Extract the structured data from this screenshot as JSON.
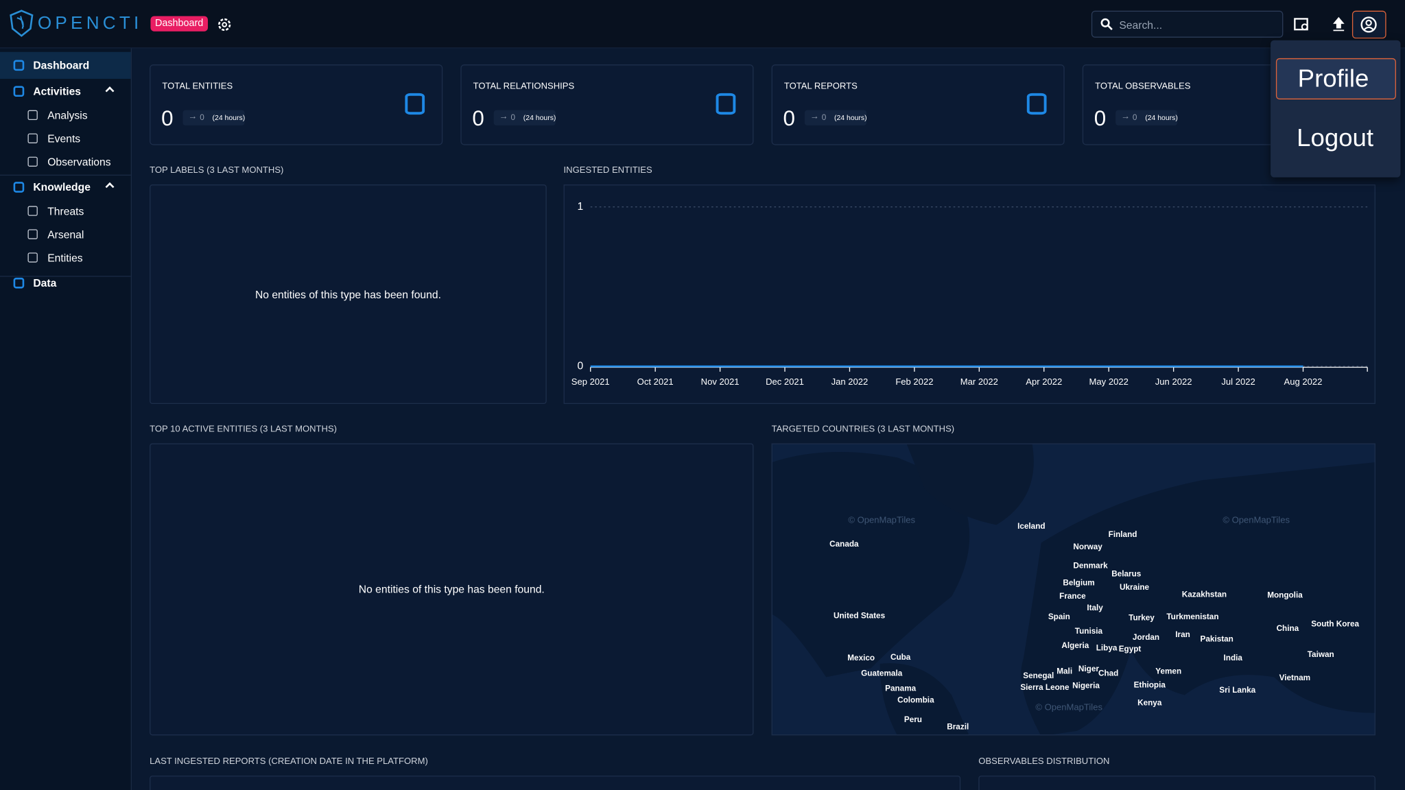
{
  "header": {
    "logo": "OPENCTI",
    "badge": "Dashboard",
    "search_placeholder": "Search..."
  },
  "user_menu": {
    "items": [
      "Profile",
      "Logout"
    ]
  },
  "sidebar": {
    "items": [
      {
        "label": "Dashboard"
      },
      {
        "label": "Activities",
        "children": [
          "Analysis",
          "Events",
          "Observations"
        ]
      },
      {
        "label": "Knowledge",
        "children": [
          "Threats",
          "Arsenal",
          "Entities"
        ]
      },
      {
        "label": "Data"
      }
    ]
  },
  "cards": [
    {
      "title": "TOTAL ENTITIES",
      "value": 0,
      "delta": 0,
      "period": "(24 hours)"
    },
    {
      "title": "TOTAL RELATIONSHIPS",
      "value": 0,
      "delta": 0,
      "period": "(24 hours)"
    },
    {
      "title": "TOTAL REPORTS",
      "value": 0,
      "delta": 0,
      "period": "(24 hours)"
    },
    {
      "title": "TOTAL OBSERVABLES",
      "value": 0,
      "delta": 0,
      "period": "(24 hours)"
    }
  ],
  "panels": {
    "top_labels": {
      "title": "TOP LABELS (3 LAST MONTHS)",
      "empty": "No entities of this type has been found."
    },
    "ingested": {
      "title": "INGESTED ENTITIES"
    },
    "top_active": {
      "title": "TOP 10 ACTIVE ENTITIES (3 LAST MONTHS)",
      "empty": "No entities of this type has been found."
    },
    "countries": {
      "title": "TARGETED COUNTRIES (3 LAST MONTHS)"
    },
    "reports": {
      "title": "LAST INGESTED REPORTS (CREATION DATE IN THE PLATFORM)"
    },
    "observables": {
      "title": "OBSERVABLES DISTRIBUTION"
    }
  },
  "chart_data": {
    "type": "line",
    "categories": [
      "Sep 2021",
      "Oct 2021",
      "Nov 2021",
      "Dec 2021",
      "Jan 2022",
      "Feb 2022",
      "Mar 2022",
      "Apr 2022",
      "May 2022",
      "Jun 2022",
      "Jul 2022",
      "Aug 2022"
    ],
    "values": [
      0,
      0,
      0,
      0,
      0,
      0,
      0,
      0,
      0,
      0,
      0,
      0
    ],
    "color": "#1e88e5",
    "ylim": [
      0,
      1
    ],
    "yticks": [
      0,
      1
    ],
    "grid": true
  },
  "map": {
    "attribution": [
      "© OpenMapTiles",
      "© OpenMapTiles",
      "© OpenMapTiles"
    ],
    "countries": [
      "Iceland",
      "Finland",
      "Canada",
      "Norway",
      "Denmark",
      "Belarus",
      "Belgium",
      "Ukraine",
      "France",
      "Kazakhstan",
      "Mongolia",
      "Italy",
      "United States",
      "Spain",
      "Turkey",
      "Turkmenistan",
      "South Korea",
      "China",
      "Tunisia",
      "Iran",
      "Jordan",
      "Pakistan",
      "Algeria",
      "Libya",
      "Egypt",
      "Taiwan",
      "Mexico",
      "Cuba",
      "India",
      "Niger",
      "Chad",
      "Mali",
      "Yemen",
      "Guatemala",
      "Senegal",
      "Vietnam",
      "Ethiopia",
      "Nigeria",
      "Sierra Leone",
      "Panama",
      "Sri Lanka",
      "Colombia",
      "Kenya",
      "Peru",
      "Brazil"
    ]
  }
}
